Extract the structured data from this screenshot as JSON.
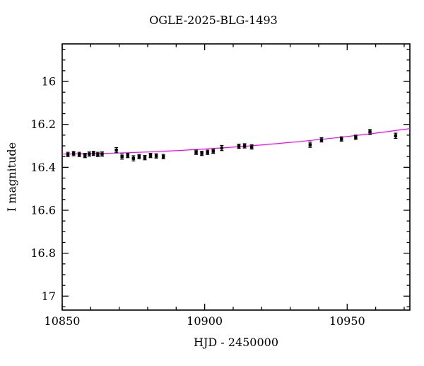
{
  "figure": {
    "title": "OGLE-2025-BLG-1493",
    "xlabel": "HJD - 2450000",
    "ylabel": "I magnitude"
  },
  "colors": {
    "background": "#ffffff",
    "frame": "#000000",
    "data_points": "#000000",
    "model_curve": "#ff00ff"
  },
  "chart_data": {
    "type": "scatter",
    "title": "OGLE-2025-BLG-1493",
    "xlabel": "HJD - 2450000",
    "ylabel": "I magnitude",
    "y_axis_inverted": true,
    "grid": false,
    "legend": null,
    "xlim": [
      10850,
      10972
    ],
    "ylim_top": 15.825,
    "ylim_bottom": 17.065,
    "x_ticks": [
      10850,
      10900,
      10950
    ],
    "x_tick_labels": [
      "10850",
      "10900",
      "10950"
    ],
    "x_minor_step": 10,
    "y_ticks": [
      16,
      16.2,
      16.4,
      16.6,
      16.8,
      17
    ],
    "y_tick_labels": [
      "16",
      "16.2",
      "16.4",
      "16.6",
      "16.8",
      "17"
    ],
    "y_minor_step": 0.05,
    "y_minor_start": 15.85,
    "y_minor_end": 17.05,
    "series": [
      {
        "name": "OGLE I-band photometry",
        "marker": "square",
        "color": "#000000",
        "points": [
          [
            10852.0,
            16.34,
            0.01
          ],
          [
            10854.0,
            16.336,
            0.01
          ],
          [
            10856.0,
            16.34,
            0.01
          ],
          [
            10858.0,
            16.345,
            0.01
          ],
          [
            10859.5,
            16.338,
            0.01
          ],
          [
            10861.0,
            16.335,
            0.01
          ],
          [
            10862.5,
            16.34,
            0.01
          ],
          [
            10864.0,
            16.338,
            0.01
          ],
          [
            10869.0,
            16.32,
            0.012
          ],
          [
            10871.0,
            16.35,
            0.012
          ],
          [
            10873.0,
            16.345,
            0.01
          ],
          [
            10875.0,
            16.358,
            0.012
          ],
          [
            10877.0,
            16.35,
            0.01
          ],
          [
            10879.0,
            16.355,
            0.01
          ],
          [
            10881.0,
            16.345,
            0.01
          ],
          [
            10883.0,
            16.347,
            0.01
          ],
          [
            10885.5,
            16.35,
            0.01
          ],
          [
            10897.0,
            16.33,
            0.01
          ],
          [
            10899.0,
            16.335,
            0.01
          ],
          [
            10901.0,
            16.33,
            0.01
          ],
          [
            10903.0,
            16.325,
            0.01
          ],
          [
            10906.0,
            16.31,
            0.012
          ],
          [
            10912.0,
            16.302,
            0.01
          ],
          [
            10914.0,
            16.3,
            0.01
          ],
          [
            10916.5,
            16.305,
            0.01
          ],
          [
            10937.0,
            16.295,
            0.012
          ],
          [
            10941.0,
            16.272,
            0.01
          ],
          [
            10948.0,
            16.268,
            0.01
          ],
          [
            10953.0,
            16.26,
            0.01
          ],
          [
            10958.0,
            16.235,
            0.012
          ],
          [
            10967.0,
            16.253,
            0.012
          ]
        ]
      }
    ],
    "model": {
      "name": "microlensing model",
      "color": "#ff00ff",
      "points": [
        [
          10850,
          16.3385
        ],
        [
          10856,
          16.3375
        ],
        [
          10862,
          16.336
        ],
        [
          10868,
          16.334
        ],
        [
          10874,
          16.3315
        ],
        [
          10880,
          16.3285
        ],
        [
          10886,
          16.325
        ],
        [
          10892,
          16.321
        ],
        [
          10898,
          16.3165
        ],
        [
          10904,
          16.3115
        ],
        [
          10910,
          16.306
        ],
        [
          10916,
          16.3
        ],
        [
          10922,
          16.2935
        ],
        [
          10928,
          16.2865
        ],
        [
          10934,
          16.279
        ],
        [
          10940,
          16.271
        ],
        [
          10946,
          16.2625
        ],
        [
          10952,
          16.2535
        ],
        [
          10958,
          16.244
        ],
        [
          10964,
          16.234
        ],
        [
          10972,
          16.2195
        ]
      ]
    }
  }
}
